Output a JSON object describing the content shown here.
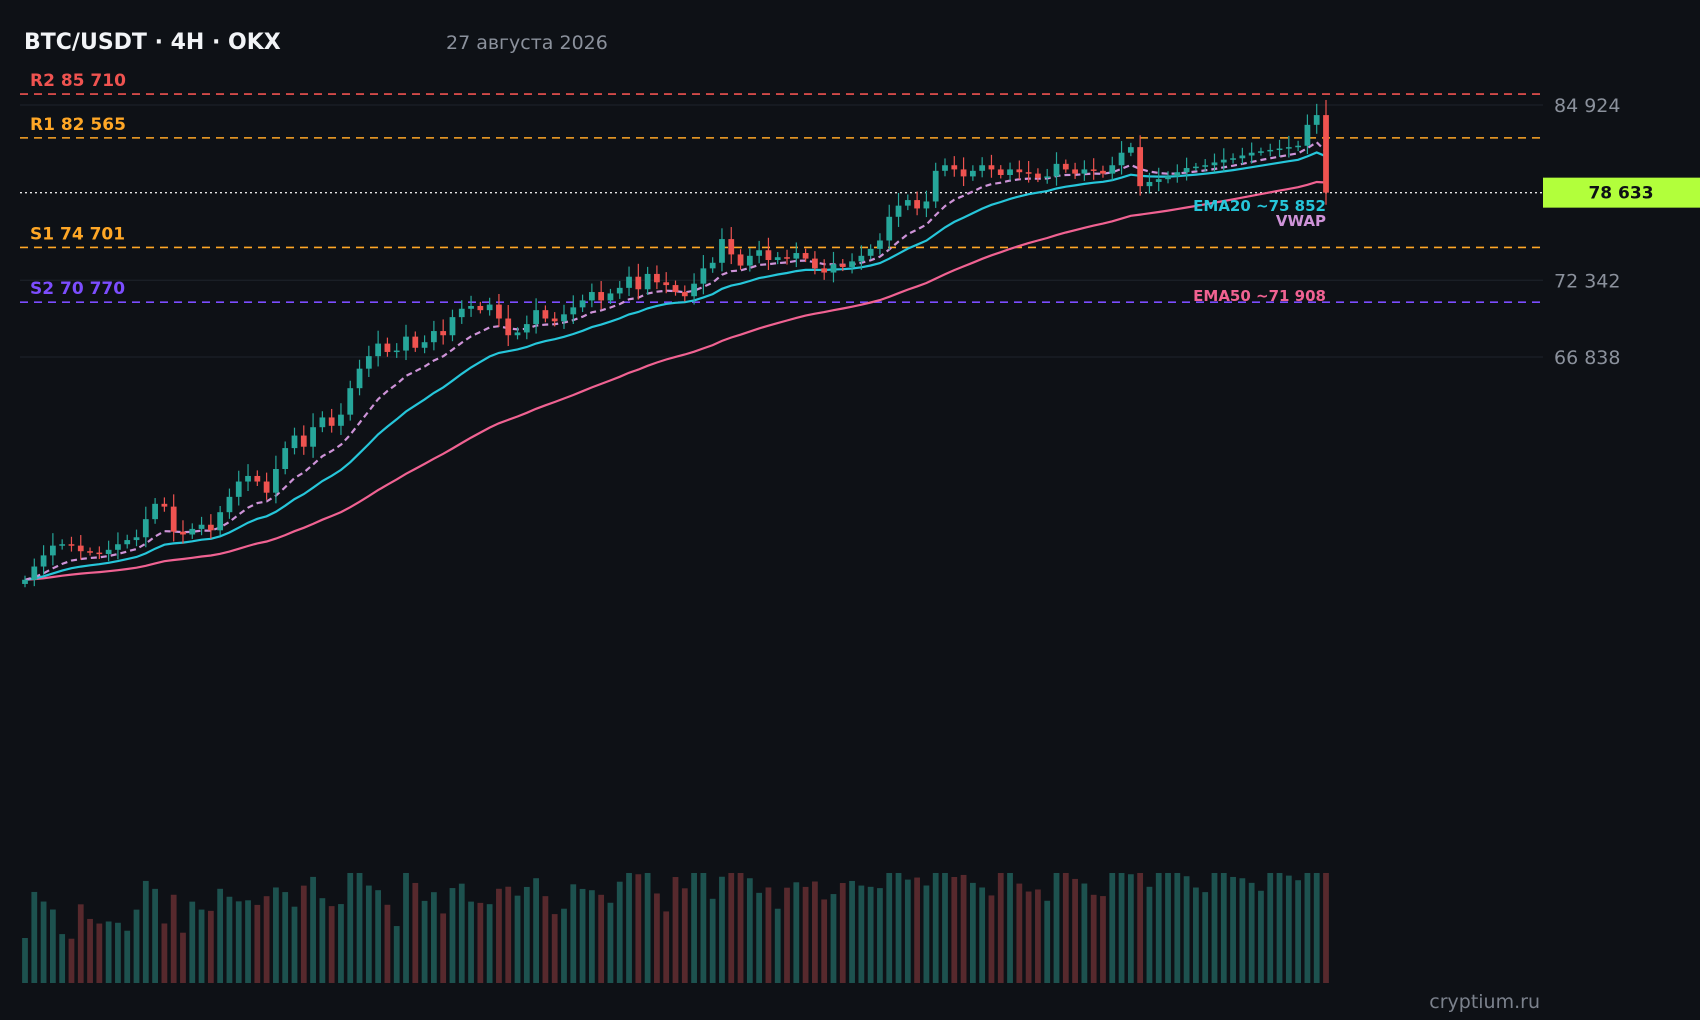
{
  "header": {
    "title": "BTC/USDT · 4H · OKX",
    "date": "27 августа 2026"
  },
  "watermark": "cryptium.ru",
  "colors": {
    "background": "#0e1116",
    "grid": "#1f242c",
    "up": "#26a69a",
    "down": "#ef5350",
    "ema20": "#26c6da",
    "ema50": "#f06292",
    "vwap": "#ce93d8",
    "r2": "#ef5350",
    "r1": "#ffa726",
    "s1": "#ffa726",
    "s2": "#7c4dff",
    "last_price_bg": "#b2ff3b"
  },
  "chart_data": {
    "type": "candlestick",
    "price_axis": {
      "ticks": [
        84924,
        72342,
        66838
      ],
      "tick_labels": [
        "84 924",
        "72 342",
        "66 838"
      ],
      "range": [
        50000,
        89100
      ]
    },
    "last_price": 78633,
    "last_price_label": "78 633",
    "levels": [
      {
        "id": "r2",
        "label": "R2 85 710",
        "value": 85710
      },
      {
        "id": "r1",
        "label": "R1 82 565",
        "value": 82565
      },
      {
        "id": "s1",
        "label": "S1 74 701",
        "value": 74701
      },
      {
        "id": "s2",
        "label": "S2 70 770",
        "value": 70770
      }
    ],
    "indicators": [
      {
        "id": "ema20",
        "label": "EMA20 ~75 852"
      },
      {
        "id": "vwap",
        "label": "VWAP"
      },
      {
        "id": "ema50",
        "label": "EMA50 ~71 908"
      }
    ],
    "candle_closes": [
      50850,
      51800,
      52600,
      53300,
      53400,
      53300,
      52900,
      52800,
      52700,
      53000,
      53400,
      53700,
      53900,
      55200,
      56300,
      56100,
      54300,
      54100,
      54500,
      54800,
      54400,
      55700,
      56800,
      57900,
      58300,
      57900,
      57100,
      58800,
      60300,
      61200,
      60400,
      61800,
      62500,
      61900,
      62700,
      64600,
      66000,
      66900,
      67800,
      67200,
      67300,
      68300,
      67500,
      67900,
      68700,
      68400,
      69700,
      70300,
      70500,
      70200,
      70600,
      69600,
      68400,
      68600,
      69200,
      70200,
      69600,
      69400,
      69900,
      70400,
      70900,
      71500,
      70900,
      71400,
      71800,
      72600,
      71700,
      72800,
      72200,
      72000,
      71500,
      71200,
      72100,
      73200,
      73600,
      75300,
      74200,
      73400,
      74100,
      74500,
      73800,
      74000,
      73900,
      74300,
      73900,
      73200,
      72900,
      73500,
      73300,
      73700,
      74100,
      74600,
      75200,
      76900,
      77700,
      78100,
      77500,
      78000,
      80200,
      80600,
      80300,
      79800,
      80200,
      80600,
      80300,
      79900,
      80300,
      80100,
      80000,
      79700,
      79800,
      80700,
      80300,
      80000,
      80300,
      80200,
      80000,
      80600,
      81500,
      81900,
      79100,
      79400,
      79600,
      79800,
      80100,
      80400,
      80500,
      80600,
      80800,
      81000,
      81100,
      81300,
      81500,
      81600,
      81700,
      81800,
      81900,
      82000,
      83500,
      84200,
      78633
    ]
  }
}
